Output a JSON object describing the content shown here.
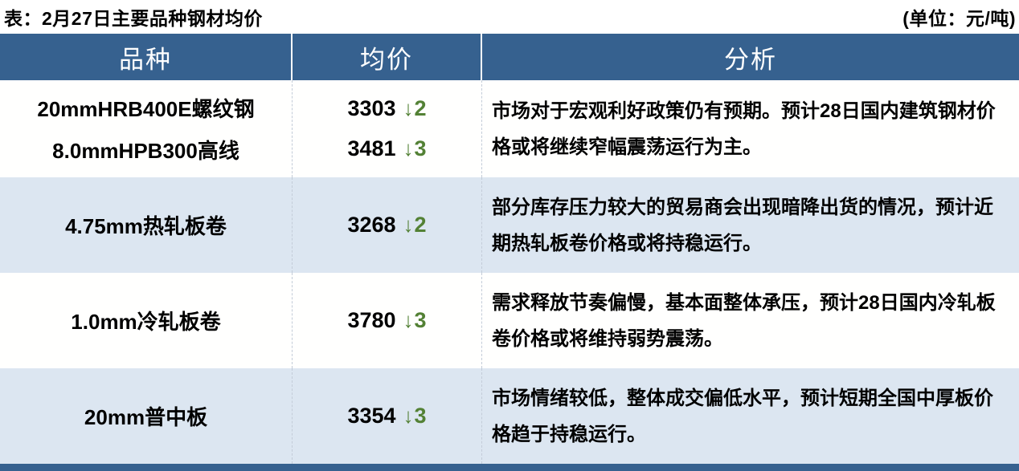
{
  "title_bar": {
    "title": "表：2月27日主要品种钢材均价",
    "unit": "(单位：元/吨)"
  },
  "icons": {
    "down_arrow": "↓"
  },
  "colors": {
    "header_bg": "#36618F",
    "row_bg": "#FFFFFE",
    "row_alt_bg": "#DCE6F1",
    "header_text": "#FFFFFF",
    "change_down_green": "#538135",
    "bottom_bar": "#36618F"
  },
  "table": {
    "headers": [
      "品种",
      "均价",
      "分析"
    ],
    "groups": [
      {
        "rows": [
          {
            "variety": "20mmHRB400E螺纹钢",
            "price": "3303",
            "direction": "down",
            "change": "2"
          },
          {
            "variety": "8.0mmHPB300高线",
            "price": "3481",
            "direction": "down",
            "change": "3"
          }
        ],
        "analysis": "市场对于宏观利好政策仍有预期。预计28日国内建筑钢材价格或将继续窄幅震荡运行为主。"
      },
      {
        "rows": [
          {
            "variety": "4.75mm热轧板卷",
            "price": "3268",
            "direction": "down",
            "change": "2"
          }
        ],
        "analysis": "部分库存压力较大的贸易商会出现暗降出货的情况，预计近期热轧板卷价格或将持稳运行。"
      },
      {
        "rows": [
          {
            "variety": "1.0mm冷轧板卷",
            "price": "3780",
            "direction": "down",
            "change": "3"
          }
        ],
        "analysis": "需求释放节奏偏慢，基本面整体承压，预计28日国内冷轧板卷价格或将维持弱势震荡。"
      },
      {
        "rows": [
          {
            "variety": "20mm普中板",
            "price": "3354",
            "direction": "down",
            "change": "3"
          }
        ],
        "analysis": "市场情绪较低，整体成交偏低水平，预计短期全国中厚板价格趋于持稳运行。"
      }
    ]
  }
}
